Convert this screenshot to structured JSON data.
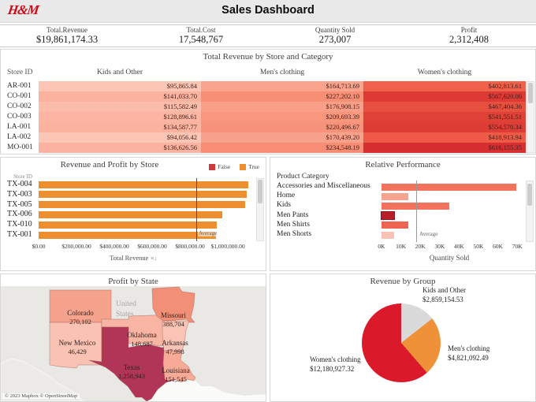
{
  "header": {
    "logo": "H&M",
    "title": "Sales Dashboard"
  },
  "kpis": [
    {
      "label": "Total.Revenue",
      "value": "$19,861,174.33"
    },
    {
      "label": "Total.Cost",
      "value": "17,548,767"
    },
    {
      "label": "Quantity Sold",
      "value": "273,007"
    },
    {
      "label": "Profit",
      "value": "2,312,408"
    }
  ],
  "heatmap": {
    "title": "Total Revenue by Store and Category",
    "row_header": "Store ID",
    "columns": [
      "Kids and Other",
      "Men's clothing",
      "Women's clothing"
    ],
    "rows": [
      {
        "store": "AR-001",
        "values": [
          "$95,865.84",
          "$164,713.69",
          "$402,813.61"
        ],
        "colors": [
          "#fcc5b4",
          "#f9a58e",
          "#f0614b"
        ]
      },
      {
        "store": "CO-001",
        "values": [
          "$141,033.70",
          "$227,202.10",
          "$567,620.06"
        ],
        "colors": [
          "#fbb29e",
          "#f78f76",
          "#dd3935"
        ]
      },
      {
        "store": "CO-002",
        "values": [
          "$115,582.49",
          "$176,908.15",
          "$467,404.36"
        ],
        "colors": [
          "#fcbcaa",
          "#f99f88",
          "#e74f3f"
        ]
      },
      {
        "store": "CO-003",
        "values": [
          "$128,896.61",
          "$209,693.39",
          "$541,551.51"
        ],
        "colors": [
          "#fbb5a2",
          "#f8967e",
          "#e04136"
        ]
      },
      {
        "store": "LA-001",
        "values": [
          "$134,587.77",
          "$220,496.67",
          "$554,570.34"
        ],
        "colors": [
          "#fbb3a0",
          "#f7937a",
          "#de3d35"
        ]
      },
      {
        "store": "LA-002",
        "values": [
          "$94,056.42",
          "$170,439.20",
          "$418,913.94"
        ],
        "colors": [
          "#fcc6b5",
          "#f9a28b",
          "#ee5a46"
        ]
      },
      {
        "store": "MO-001",
        "values": [
          "$136,626.56",
          "$234,548.19",
          "$616,155.35"
        ],
        "colors": [
          "#fbb2a0",
          "#f78d74",
          "#d62e31"
        ]
      }
    ]
  },
  "store_chart": {
    "title": "Revenue and Profit by Store",
    "legend": [
      {
        "label": "False",
        "color": "#d0393b"
      },
      {
        "label": "True",
        "color": "#ee8f2f"
      }
    ],
    "axis_header": "Store ID",
    "bar_color": "#ee8f2f",
    "bars": [
      {
        "store": "TX-004",
        "value": 1110000
      },
      {
        "store": "TX-003",
        "value": 1100000
      },
      {
        "store": "TX-005",
        "value": 1090000
      },
      {
        "store": "TX-006",
        "value": 970000
      },
      {
        "store": "TX-010",
        "value": 940000
      },
      {
        "store": "TX-001",
        "value": 938000
      }
    ],
    "ticks": [
      "$0.00",
      "$200,000.00",
      "$400,000.00",
      "$600,000.00",
      "$800,000.00",
      "$1,000,000.00"
    ],
    "average_label": "Average",
    "average_value": 833000,
    "xlabel": "Total Revenue"
  },
  "category_chart": {
    "title": "Relative Performance",
    "axis_header": "Product Category",
    "bars": [
      {
        "category": "Accessories and Miscellaneous",
        "value": 69600,
        "color": "#f3735c"
      },
      {
        "category": "Home",
        "value": 13900,
        "color": "#f7a38f"
      },
      {
        "category": "Kids",
        "value": 35100,
        "color": "#f3735c"
      },
      {
        "category": "Men Pants",
        "value": 6700,
        "color": "#b71f2b"
      },
      {
        "category": "Men Shirts",
        "value": 13900,
        "color": "#ef6450"
      },
      {
        "category": "Men Shorts",
        "value": 6500,
        "color": "#f9c3b4"
      }
    ],
    "ticks": [
      "0K",
      "10K",
      "20K",
      "30K",
      "40K",
      "50K",
      "60K",
      "70K"
    ],
    "average_label": "Average",
    "average_value": 18000,
    "xlabel": "Quantity Sold"
  },
  "map": {
    "title": "Profit by State",
    "country_label_line1": "United",
    "country_label_line2": "States",
    "attribution": "© 2023 Mapbox © OpenStreetMap",
    "states": [
      {
        "name": "Colorado",
        "value": "270,102",
        "color": "#f5a38c"
      },
      {
        "name": "New Mexico",
        "value": "46,429",
        "color": "#f9c2b2"
      },
      {
        "name": "Oklahoma",
        "value": "148,687",
        "color": "#f9b5a3"
      },
      {
        "name": "Texas",
        "value": "1,258,943",
        "color": "#b13556"
      },
      {
        "name": "Missouri",
        "value": "388,704",
        "color": "#f29077"
      },
      {
        "name": "Arkansas",
        "value": "47,998",
        "color": "#f9c4b6"
      },
      {
        "name": "Louisiana",
        "value": "151,545",
        "color": "#f7ab97"
      }
    ]
  },
  "pie": {
    "title": "Revenue by Group",
    "slices": [
      {
        "label": "Kids and Other",
        "value_label": "$2,859,154.53",
        "value": 2859154.53,
        "color": "#dadada"
      },
      {
        "label": "Men's clothing",
        "value_label": "$4,821,092.49",
        "value": 4821092.49,
        "color": "#ef9139"
      },
      {
        "label": "Women's clothing",
        "value_label": "$12,180,927.32",
        "value": 12180927.32,
        "color": "#da1a2b"
      }
    ]
  },
  "chart_data": [
    {
      "type": "heatmap",
      "title": "Total Revenue by Store and Category",
      "rows": [
        "AR-001",
        "CO-001",
        "CO-002",
        "CO-003",
        "LA-001",
        "LA-002",
        "MO-001"
      ],
      "columns": [
        "Kids and Other",
        "Men's clothing",
        "Women's clothing"
      ],
      "values": [
        [
          95865.84,
          164713.69,
          402813.61
        ],
        [
          141033.7,
          227202.1,
          567620.06
        ],
        [
          115582.49,
          176908.15,
          467404.36
        ],
        [
          128896.61,
          209693.39,
          541551.51
        ],
        [
          134587.77,
          220496.67,
          554570.34
        ],
        [
          94056.42,
          170439.2,
          418913.94
        ],
        [
          136626.56,
          234548.19,
          616155.35
        ]
      ]
    },
    {
      "type": "bar",
      "title": "Revenue and Profit by Store",
      "orientation": "horizontal",
      "categories": [
        "TX-004",
        "TX-003",
        "TX-005",
        "TX-006",
        "TX-010",
        "TX-001"
      ],
      "values": [
        1110000,
        1100000,
        1090000,
        970000,
        940000,
        938000
      ],
      "xlabel": "Total Revenue",
      "ylabel": "Store ID",
      "xlim": [
        0,
        1000000
      ],
      "reference_line": {
        "label": "Average",
        "value": 833000
      },
      "legend": [
        "False",
        "True"
      ]
    },
    {
      "type": "bar",
      "title": "Relative Performance",
      "orientation": "horizontal",
      "categories": [
        "Accessories and Miscellaneous",
        "Home",
        "Kids",
        "Men Pants",
        "Men Shirts",
        "Men Shorts"
      ],
      "values": [
        69600,
        13900,
        35100,
        6700,
        13900,
        6500
      ],
      "xlabel": "Quantity Sold",
      "ylabel": "Product Category",
      "xlim": [
        0,
        70000
      ],
      "reference_line": {
        "label": "Average",
        "value": 18000
      }
    },
    {
      "type": "table",
      "title": "Profit by State",
      "columns": [
        "State",
        "Profit"
      ],
      "values": [
        [
          "Colorado",
          270102
        ],
        [
          "New Mexico",
          46429
        ],
        [
          "Oklahoma",
          148687
        ],
        [
          "Texas",
          1258943
        ],
        [
          "Missouri",
          388704
        ],
        [
          "Arkansas",
          47998
        ],
        [
          "Louisiana",
          151545
        ]
      ]
    },
    {
      "type": "pie",
      "title": "Revenue by Group",
      "categories": [
        "Kids and Other",
        "Men's clothing",
        "Women's clothing"
      ],
      "values": [
        2859154.53,
        4821092.49,
        12180927.32
      ]
    }
  ]
}
